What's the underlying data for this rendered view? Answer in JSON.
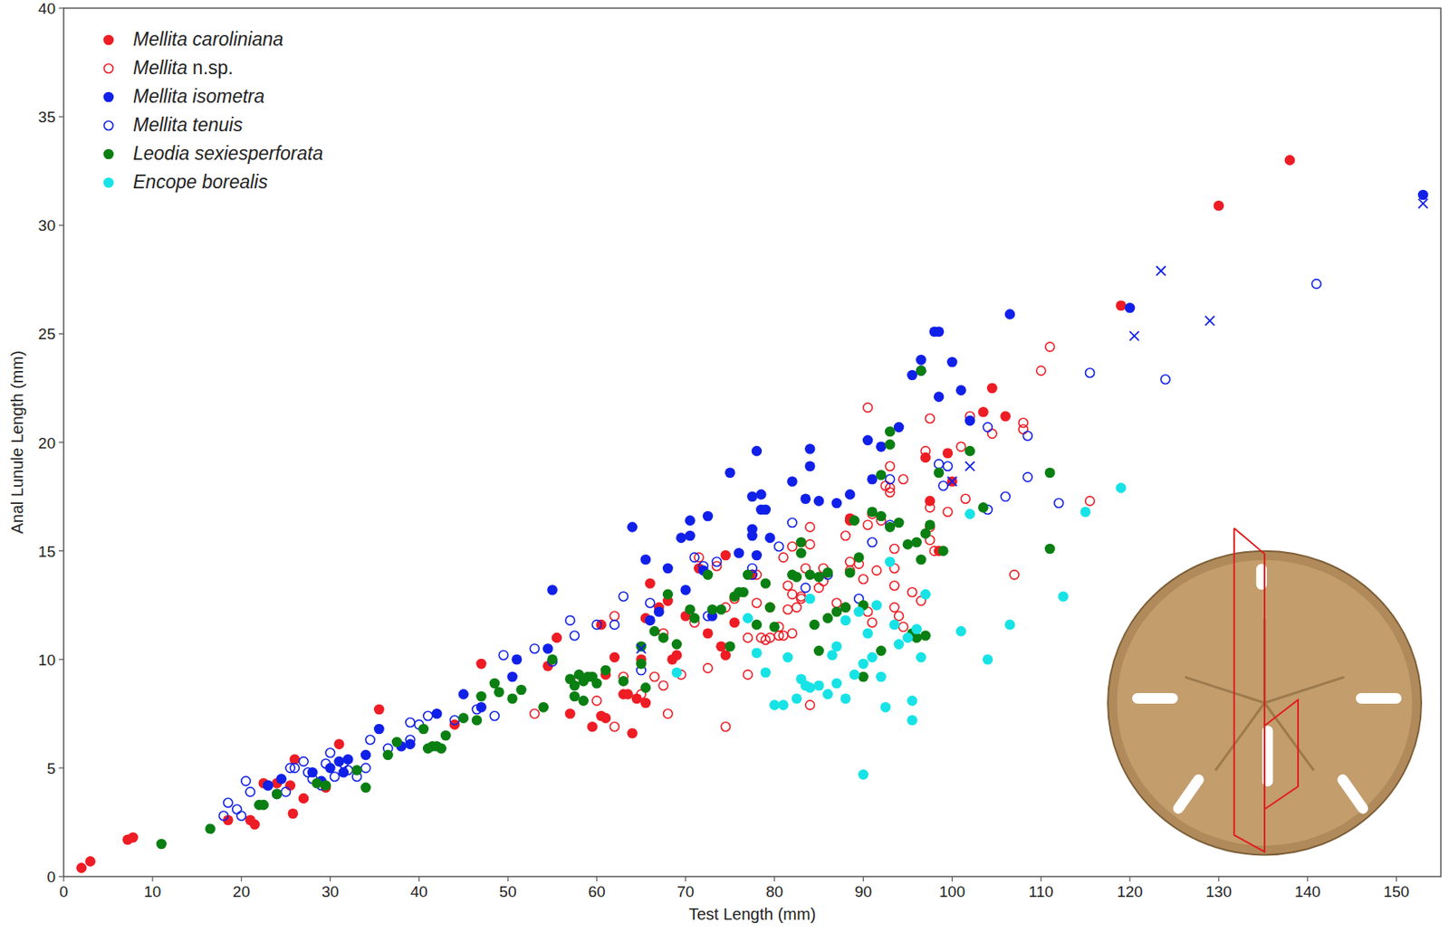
{
  "chart_data": {
    "type": "scatter",
    "x_label": "Test Length (mm)",
    "y_label": "Anal Lunule Length (mm)",
    "xlim": [
      0,
      155
    ],
    "ylim": [
      0,
      40
    ],
    "xticks": [
      0,
      10,
      20,
      30,
      40,
      50,
      60,
      70,
      80,
      90,
      100,
      110,
      120,
      130,
      140,
      150
    ],
    "yticks": [
      0,
      5,
      10,
      15,
      20,
      25,
      30,
      35,
      40
    ],
    "legend": "upper left",
    "grid": false,
    "series": [
      {
        "name": "Mellita caroliniana",
        "color": "#ee1c24",
        "marker": "circle",
        "x": [
          2,
          3,
          7.2,
          7.8,
          18.5,
          21,
          21.5,
          22.5,
          24,
          25.5,
          25.8,
          26,
          27,
          29.5,
          31,
          35.5,
          44,
          47,
          54.5,
          55.5,
          57,
          59.5,
          60.5,
          61,
          60.5,
          61,
          62,
          63,
          63.5,
          64,
          64.5,
          65,
          65.5,
          65.5,
          66,
          67,
          68,
          68.5,
          69,
          70,
          71.5,
          72.5,
          74,
          74.5,
          74.5,
          75.5,
          77.5,
          88.5,
          88.5,
          97,
          97.5,
          98.5,
          99.5,
          100,
          103.5,
          104.5,
          106,
          119,
          130,
          138
        ],
        "values": [
          0.4,
          0.7,
          1.7,
          1.8,
          2.6,
          2.6,
          2.4,
          4.3,
          4.3,
          4.2,
          2.9,
          5.4,
          3.6,
          4.1,
          6.1,
          7.7,
          7.0,
          9.8,
          9.7,
          11.0,
          7.5,
          6.9,
          7.4,
          7.3,
          11.6,
          9.3,
          10.1,
          8.4,
          8.4,
          6.6,
          8.2,
          10.0,
          8.0,
          11.9,
          13.5,
          12.4,
          12.7,
          10.0,
          10.2,
          12.0,
          14.2,
          11.2,
          10.6,
          10.2,
          14.8,
          11.7,
          13.9,
          16.5,
          16.4,
          19.3,
          17.3,
          15.0,
          19.5,
          18.2,
          21.4,
          22.5,
          21.2,
          26.3,
          30.9,
          33.0
        ]
      },
      {
        "name": "Mellita n.sp.",
        "color": "#ee1c24",
        "marker": "open_circle",
        "x": [
          53,
          58,
          60,
          62,
          62,
          63,
          65,
          66.5,
          67.5,
          67.5,
          68,
          69.5,
          71,
          71.5,
          72.5,
          73.5,
          74.5,
          74.5,
          75.5,
          77,
          77,
          78,
          78,
          78.5,
          79,
          79.5,
          79.5,
          80.5,
          80.5,
          81,
          81,
          81.5,
          81.5,
          82,
          82,
          82,
          82.5,
          83,
          83,
          83.5,
          84,
          84,
          84,
          85,
          85.5,
          85.5,
          87,
          88,
          88,
          88.5,
          88.5,
          89.5,
          90,
          90.5,
          90.5,
          90.5,
          91,
          91,
          91.5,
          92,
          92.5,
          93,
          93,
          93,
          93.5,
          93.5,
          93.5,
          93.5,
          94,
          94.5,
          94.5,
          95.5,
          96.5,
          97,
          97.5,
          97.5,
          97.5,
          97.5,
          98,
          99.5,
          101,
          101.5,
          102,
          104.5,
          107,
          108,
          108,
          110,
          111,
          115.5
        ],
        "values": [
          7.5,
          9.1,
          8.1,
          12.0,
          6.9,
          9.2,
          8.4,
          9.2,
          11.2,
          8.8,
          7.5,
          9.3,
          11.7,
          14.7,
          9.6,
          14.3,
          12.4,
          6.9,
          12.8,
          11.0,
          9.3,
          12.6,
          13.9,
          11.0,
          10.9,
          12.4,
          11.0,
          11.5,
          11.1,
          11.1,
          14.7,
          12.3,
          13.4,
          15.2,
          13.0,
          11.2,
          12.4,
          12.8,
          12.9,
          14.2,
          15.3,
          16.1,
          7.9,
          13.3,
          13.6,
          14.2,
          12.6,
          12.4,
          15.7,
          14.1,
          14.5,
          14.4,
          13.7,
          16.2,
          12.2,
          21.6,
          11.7,
          16.7,
          14.1,
          16.4,
          18.0,
          17.7,
          17.9,
          18.9,
          12.4,
          14.2,
          15.1,
          13.4,
          12.0,
          11.5,
          18.3,
          13.1,
          12.7,
          19.6,
          21.1,
          16.1,
          17.0,
          15.5,
          15.0,
          16.8,
          19.8,
          17.4,
          21.2,
          20.4,
          13.9,
          20.9,
          20.6,
          23.3,
          24.4,
          17.3
        ]
      },
      {
        "name": "Mellita isometra",
        "color": "#1020e8",
        "marker": "circle",
        "x": [
          23,
          24.5,
          28,
          29,
          30,
          31,
          31.5,
          32,
          34,
          35.5,
          38,
          39,
          42,
          45,
          47,
          50.5,
          51,
          54.5,
          55,
          64,
          65.5,
          66,
          67,
          68,
          69.5,
          70,
          70.5,
          70.5,
          72,
          72.5,
          73,
          75,
          76,
          77.5,
          77.5,
          77.5,
          78,
          78,
          78.5,
          78.5,
          79,
          79.5,
          82,
          83.5,
          84,
          84,
          85,
          87,
          88.5,
          90.5,
          91,
          92,
          94,
          95.5,
          96.5,
          96.5,
          98,
          98.5,
          98.5,
          100,
          101,
          102,
          106.5,
          120,
          153
        ],
        "values": [
          4.2,
          4.5,
          4.8,
          4.4,
          5.0,
          5.3,
          4.8,
          5.4,
          5.6,
          6.8,
          6.0,
          6.1,
          7.5,
          8.4,
          7.8,
          9.2,
          10.0,
          10.5,
          13.2,
          16.1,
          14.6,
          11.8,
          12.2,
          14.2,
          15.6,
          13.2,
          16.4,
          15.7,
          14.1,
          16.6,
          12.0,
          18.6,
          14.9,
          17.5,
          16.0,
          15.7,
          19.6,
          14.8,
          16.9,
          17.6,
          16.9,
          15.6,
          18.2,
          17.4,
          18.9,
          19.7,
          17.3,
          17.2,
          17.6,
          20.1,
          18.3,
          19.8,
          20.7,
          23.1,
          23.8,
          23.3,
          25.1,
          25.1,
          22.1,
          23.7,
          22.4,
          21.0,
          25.9,
          26.2,
          31.4
        ]
      },
      {
        "name": "Mellita tenuis",
        "color": "#1020e8",
        "marker": "open_circle",
        "x": [
          18,
          18.5,
          19.5,
          20,
          20.5,
          21,
          23,
          24,
          25,
          25.5,
          26,
          27,
          27.5,
          28,
          29,
          29.5,
          30,
          30.5,
          31.5,
          32,
          33,
          34,
          34.5,
          36.5,
          39,
          39,
          40,
          41,
          44,
          46.5,
          48.5,
          49.5,
          53,
          55,
          57,
          57.5,
          60,
          62,
          63,
          65,
          66,
          71,
          72,
          72.5,
          73.5,
          77.5,
          77.5,
          80.5,
          82,
          83.5,
          86,
          89.5,
          91,
          93,
          93,
          98.5,
          99.5,
          99,
          104,
          104,
          106,
          108.5,
          108.5,
          112,
          115.5,
          124,
          141
        ],
        "values": [
          2.8,
          3.4,
          3.1,
          2.8,
          4.4,
          3.9,
          4.2,
          3.8,
          3.9,
          5.0,
          5.0,
          5.3,
          4.8,
          4.5,
          4.2,
          5.2,
          5.7,
          4.6,
          5.2,
          4.9,
          4.6,
          5.0,
          6.3,
          5.9,
          6.3,
          7.1,
          7.0,
          7.4,
          7.2,
          7.7,
          7.4,
          10.2,
          10.5,
          9.9,
          11.8,
          11.1,
          11.6,
          11.6,
          12.9,
          9.5,
          12.6,
          14.7,
          14.3,
          12.0,
          14.5,
          14.2,
          13.9,
          15.2,
          16.3,
          13.3,
          13.9,
          12.8,
          15.4,
          18.3,
          16.2,
          19.0,
          18.9,
          18.0,
          20.7,
          16.9,
          17.5,
          20.3,
          18.4,
          17.2,
          23.2,
          22.9,
          27.3
        ]
      },
      {
        "name": "Leodia sexiesperforata",
        "color": "#0a7f12",
        "marker": "circle",
        "x": [
          11,
          16.5,
          22,
          22.5,
          24,
          28.5,
          29.5,
          33,
          34,
          36.5,
          37.5,
          40.5,
          41,
          41.5,
          42,
          42.5,
          43,
          45,
          46.5,
          47,
          48.5,
          49,
          50.5,
          51.5,
          54,
          55,
          57,
          57.5,
          57.5,
          58,
          58.5,
          58.5,
          59,
          59.5,
          60,
          61,
          63,
          65,
          65,
          65.5,
          66.5,
          67.5,
          68,
          69,
          70.5,
          71,
          72.5,
          73,
          74,
          75,
          75.5,
          76,
          76.5,
          77,
          78,
          79,
          79.5,
          80,
          82,
          82.5,
          83,
          83,
          84,
          84.5,
          85,
          85,
          86,
          86,
          87,
          88,
          88.5,
          89,
          89.5,
          90,
          90,
          91,
          92,
          92,
          92,
          93,
          93,
          93,
          94,
          95,
          96,
          96.5,
          96.5,
          97,
          97,
          97.5,
          98.5,
          99,
          102,
          103.5,
          111,
          111,
          96,
          95.5
        ],
        "values": [
          1.5,
          2.2,
          3.3,
          3.3,
          3.8,
          4.3,
          4.2,
          4.9,
          4.1,
          5.6,
          6.2,
          6.8,
          5.9,
          6.0,
          6.0,
          5.9,
          6.5,
          7.3,
          7.2,
          8.3,
          8.9,
          8.5,
          8.2,
          8.6,
          7.8,
          10.0,
          9.1,
          8.8,
          8.3,
          9.3,
          8.1,
          9.0,
          9.2,
          9.2,
          8.9,
          9.5,
          9.0,
          9.8,
          10.6,
          8.7,
          11.3,
          11.0,
          13.0,
          10.7,
          12.3,
          11.9,
          13.9,
          12.3,
          12.3,
          10.6,
          12.9,
          13.1,
          13.1,
          13.9,
          11.6,
          13.5,
          12.4,
          11.5,
          13.9,
          13.8,
          15.4,
          14.9,
          13.9,
          11.6,
          13.8,
          10.4,
          11.9,
          14.0,
          12.2,
          12.4,
          14.0,
          16.4,
          14.7,
          12.5,
          9.2,
          16.8,
          16.6,
          18.5,
          10.4,
          16.1,
          20.5,
          19.9,
          16.3,
          15.3,
          15.4,
          14.6,
          23.3,
          11.1,
          15.8,
          16.2,
          18.6,
          15.0,
          19.6,
          17.0,
          18.6,
          15.1,
          11.0,
          11.2
        ]
      },
      {
        "name": "Encope borealis",
        "color": "#17e3e6",
        "marker": "circle",
        "x": [
          69,
          77,
          78,
          79,
          80,
          81,
          81.5,
          82.5,
          83,
          83.5,
          84,
          84,
          85,
          86,
          86.5,
          87,
          87,
          88,
          88,
          89,
          89.5,
          90,
          90,
          90.5,
          91,
          91.5,
          92,
          92.5,
          93,
          93.5,
          94,
          95,
          95.5,
          95.5,
          96,
          96.5,
          97,
          101,
          102,
          104,
          106.5,
          112.5,
          115,
          119
        ],
        "values": [
          9.4,
          11.9,
          10.3,
          9.4,
          7.9,
          7.9,
          10.1,
          8.2,
          9.1,
          8.8,
          8.7,
          12.8,
          8.8,
          8.4,
          10.2,
          8.9,
          10.6,
          8.2,
          11.8,
          9.3,
          12.2,
          9.8,
          4.7,
          11.2,
          10.1,
          12.5,
          9.2,
          7.8,
          14.5,
          11.6,
          10.7,
          11.0,
          8.1,
          7.2,
          11.4,
          10.1,
          13.0,
          11.3,
          16.7,
          10.0,
          11.6,
          12.9,
          16.8,
          17.9
        ]
      },
      {
        "color": "#1020e8",
        "marker": "x",
        "x": [
          65,
          100,
          102,
          120.5,
          123.5,
          129,
          153
        ],
        "values": [
          10.5,
          18.2,
          18.9,
          24.9,
          27.9,
          25.6,
          31.0
        ]
      }
    ]
  }
}
